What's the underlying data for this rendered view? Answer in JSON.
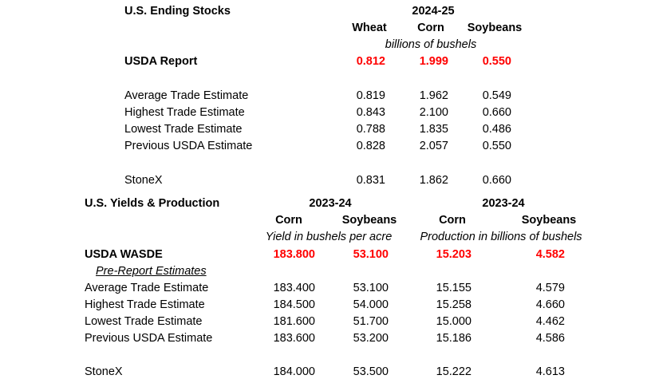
{
  "stocks": {
    "title": "U.S. Ending Stocks",
    "year": "2024-25",
    "cols": [
      "Wheat",
      "Corn",
      "Soybeans"
    ],
    "units": "billions of bushels",
    "usda_label": "USDA Report",
    "usda": [
      "0.812",
      "1.999",
      "0.550"
    ],
    "rows": [
      {
        "label": "Average Trade Estimate",
        "vals": [
          "0.819",
          "1.962",
          "0.549"
        ]
      },
      {
        "label": "Highest Trade Estimate",
        "vals": [
          "0.843",
          "2.100",
          "0.660"
        ]
      },
      {
        "label": "Lowest Trade Estimate",
        "vals": [
          "0.788",
          "1.835",
          "0.486"
        ]
      },
      {
        "label": "Previous USDA Estimate",
        "vals": [
          "0.828",
          "2.057",
          "0.550"
        ]
      }
    ],
    "stonex_label": "StoneX",
    "stonex": [
      "0.831",
      "1.862",
      "0.660"
    ]
  },
  "yields": {
    "title": "U.S. Yields & Production",
    "year_left": "2023-24",
    "year_right": "2023-24",
    "cols": [
      "Corn",
      "Soybeans",
      "Corn",
      "Soybeans"
    ],
    "units_left": "Yield in bushels per acre",
    "units_right": "Production in billions of bushels",
    "usda_label": "USDA WASDE",
    "usda": [
      "183.800",
      "53.100",
      "15.203",
      "4.582"
    ],
    "pre_label": "Pre-Report Estimates",
    "rows": [
      {
        "label": "Average Trade Estimate",
        "vals": [
          "183.400",
          "53.100",
          "15.155",
          "4.579"
        ]
      },
      {
        "label": "Highest Trade Estimate",
        "vals": [
          "184.500",
          "54.000",
          "15.258",
          "4.660"
        ]
      },
      {
        "label": "Lowest Trade Estimate",
        "vals": [
          "181.600",
          "51.700",
          "15.000",
          "4.462"
        ]
      },
      {
        "label": "Previous USDA Estimate",
        "vals": [
          "183.600",
          "53.200",
          "15.186",
          "4.586"
        ]
      }
    ],
    "stonex_label": "StoneX",
    "stonex": [
      "184.000",
      "53.500",
      "15.222",
      "4.613"
    ]
  }
}
